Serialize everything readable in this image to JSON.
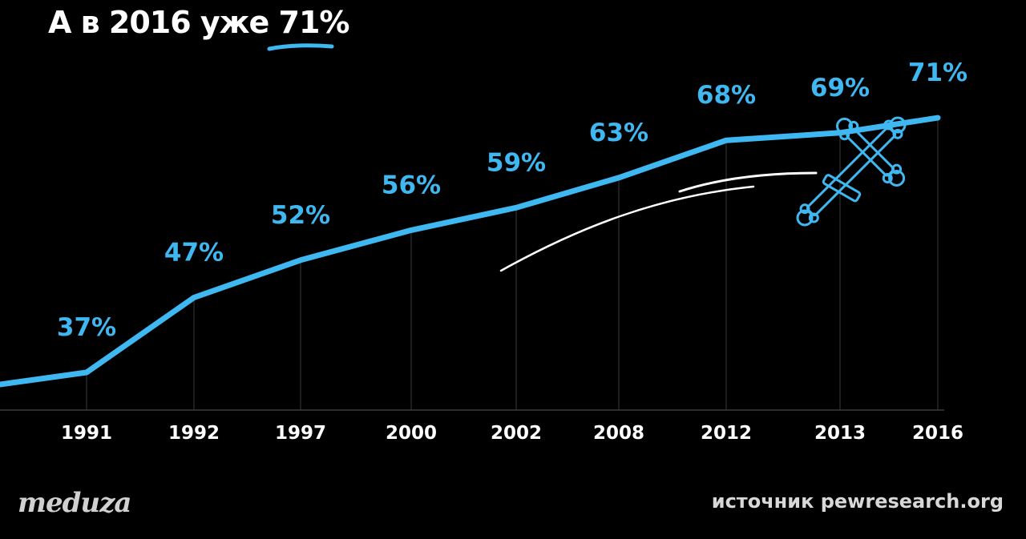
{
  "title_prefix": "А в 2016 уже",
  "title_highlight": "71%",
  "logo": "meduza",
  "source": "источник pewresearch.org",
  "colors": {
    "background": "#000000",
    "line": "#3fb8f2",
    "text": "#ffffff",
    "grid": "#3a3a3a",
    "doodle": "#ffffff"
  },
  "icons": {
    "cross": "orthodox-cross-icon"
  },
  "chart_data": {
    "type": "line",
    "categories": [
      "1991",
      "1992",
      "1997",
      "2000",
      "2002",
      "2008",
      "2012",
      "2013",
      "2016"
    ],
    "series": [
      {
        "values": [
          37,
          47,
          52,
          56,
          59,
          63,
          68,
          69,
          71
        ]
      }
    ],
    "data_labels": [
      "37%",
      "47%",
      "52%",
      "56%",
      "59%",
      "63%",
      "68%",
      "69%",
      "71%"
    ],
    "title": "А в 2016 уже 71%",
    "xlabel": "",
    "ylabel": "",
    "grid": "vertical"
  }
}
